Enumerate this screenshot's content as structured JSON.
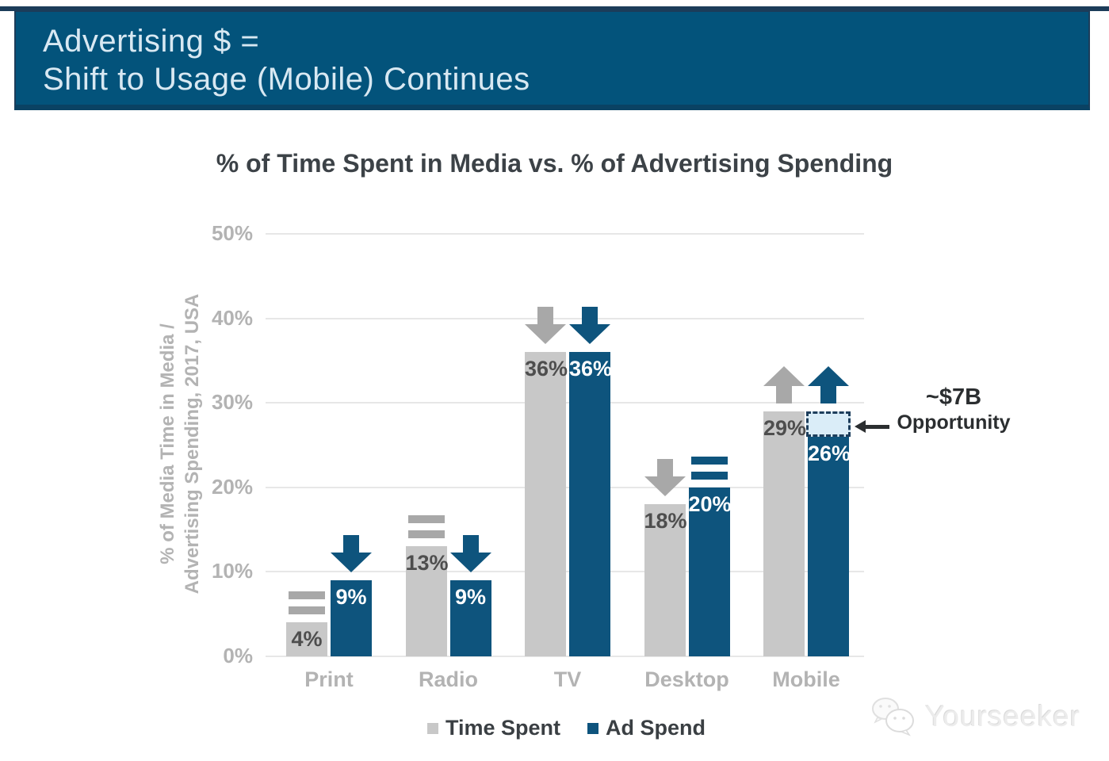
{
  "banner": {
    "line1": "Advertising $ =",
    "line2": "Shift to Usage (Mobile) Continues",
    "bg_color": "#03537b",
    "text_color": "#d8e8f2"
  },
  "chart_data": {
    "type": "bar",
    "title": "% of Time Spent in Media vs. % of Advertising Spending",
    "ylabel_line1": "% of Media Time in Media /",
    "ylabel_line2": "Advertising Spending, 2017, USA",
    "categories": [
      "Print",
      "Radio",
      "TV",
      "Desktop",
      "Mobile"
    ],
    "series": [
      {
        "name": "Time Spent",
        "color": "#c8c8c8",
        "label_color": "#4e4e4e",
        "marker_color": "#a8a8a8",
        "values": [
          4,
          13,
          36,
          18,
          29
        ],
        "labels": [
          "4%",
          "13%",
          "36%",
          "18%",
          "29%"
        ],
        "markers": [
          "equal",
          "equal",
          "down",
          "down",
          "up"
        ]
      },
      {
        "name": "Ad Spend",
        "color": "#0e547d",
        "label_color": "#ffffff",
        "marker_color": "#0e547d",
        "values": [
          9,
          9,
          36,
          20,
          26
        ],
        "labels": [
          "9%",
          "9%",
          "36%",
          "20%",
          "26%"
        ],
        "markers": [
          "down",
          "down",
          "down",
          "equal",
          "up"
        ]
      }
    ],
    "ylim": [
      0,
      50
    ],
    "ytick_step": 10,
    "ytick_labels": [
      "0%",
      "10%",
      "20%",
      "30%",
      "40%",
      "50%"
    ],
    "grid": true,
    "legend_position": "bottom",
    "annotation": {
      "text_line1": "~$7B",
      "text_line2": "Opportunity",
      "category": "Mobile",
      "series": "Ad Spend",
      "box_from": 26,
      "box_to": 29,
      "box_fill": "#daedf8",
      "box_border": "#1d3e5c"
    }
  },
  "watermark": {
    "text": "Yourseeker",
    "icon": "chat-bubbles-icon"
  }
}
